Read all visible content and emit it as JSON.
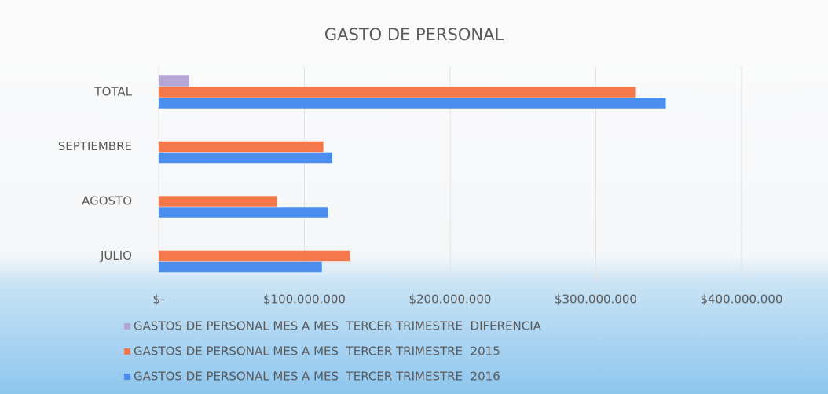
{
  "chart_data": {
    "type": "bar",
    "orientation": "horizontal",
    "title": "GASTO DE PERSONAL",
    "categories": [
      "TOTAL",
      "SEPTIEMBRE",
      "AGOSTO",
      "JULIO"
    ],
    "series": [
      {
        "name": "GASTOS DE PERSONAL MES A MES  TERCER TRIMESTRE  DIFERENCIA",
        "color": "#b4a7d6",
        "values": [
          21000000,
          null,
          null,
          null
        ]
      },
      {
        "name": "GASTOS DE PERSONAL MES A MES  TERCER TRIMESTRE  2015",
        "color": "#f4784a",
        "values": [
          327000000,
          113000000,
          81000000,
          131000000
        ]
      },
      {
        "name": "GASTOS DE PERSONAL MES A MES  TERCER TRIMESTRE  2016",
        "color": "#4a8ff0",
        "values": [
          348000000,
          119000000,
          116000000,
          112000000
        ]
      }
    ],
    "xlim": [
      0,
      441000000
    ],
    "xticks": [
      {
        "value": 0,
        "label": "$-"
      },
      {
        "value": 100000000,
        "label": "$100.000.000"
      },
      {
        "value": 200000000,
        "label": "$200.000.000"
      },
      {
        "value": 300000000,
        "label": "$300.000.000"
      },
      {
        "value": 400000000,
        "label": "$400.000.000"
      }
    ],
    "grid": true
  }
}
